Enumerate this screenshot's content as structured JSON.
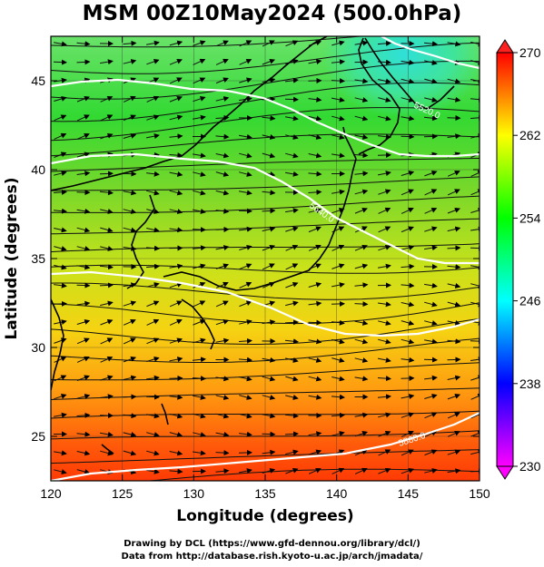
{
  "title": "MSM 00Z10May2024 (500.0hPa)",
  "x_axis": {
    "label": "Longitude (degrees)",
    "ticks": [
      "120",
      "125",
      "130",
      "135",
      "140",
      "145",
      "150"
    ]
  },
  "y_axis": {
    "label": "Latitude  (degrees)",
    "ticks": [
      "25",
      "30",
      "35",
      "40",
      "45"
    ]
  },
  "colorbar": {
    "ticks": [
      "230",
      "238",
      "246",
      "254",
      "262",
      "270"
    ],
    "range": [
      230,
      270
    ],
    "colors": [
      "#ff00ff",
      "#0000ff",
      "#00ffff",
      "#00ff00",
      "#ffff00",
      "#ff0000"
    ]
  },
  "contours": [
    {
      "label": "5880.0"
    },
    {
      "label": "5640.0"
    },
    {
      "label": "5520.0"
    }
  ],
  "credits": [
    "Drawing by DCL (https://www.gfd-dennou.org/library/dcl/)",
    "Data from http://database.rish.kyoto-u.ac.jp/arch/jmadata/"
  ],
  "chart_data": {
    "type": "heatmap",
    "title": "MSM 00Z10May2024 (500.0hPa)",
    "xlabel": "Longitude (degrees)",
    "ylabel": "Latitude  (degrees)",
    "xlim": [
      120,
      150
    ],
    "ylim": [
      22.5,
      47.5
    ],
    "colorbar_range": [
      230,
      270
    ],
    "contour_labels": [
      "5880.0",
      "5640.0",
      "5520.0"
    ]
  }
}
